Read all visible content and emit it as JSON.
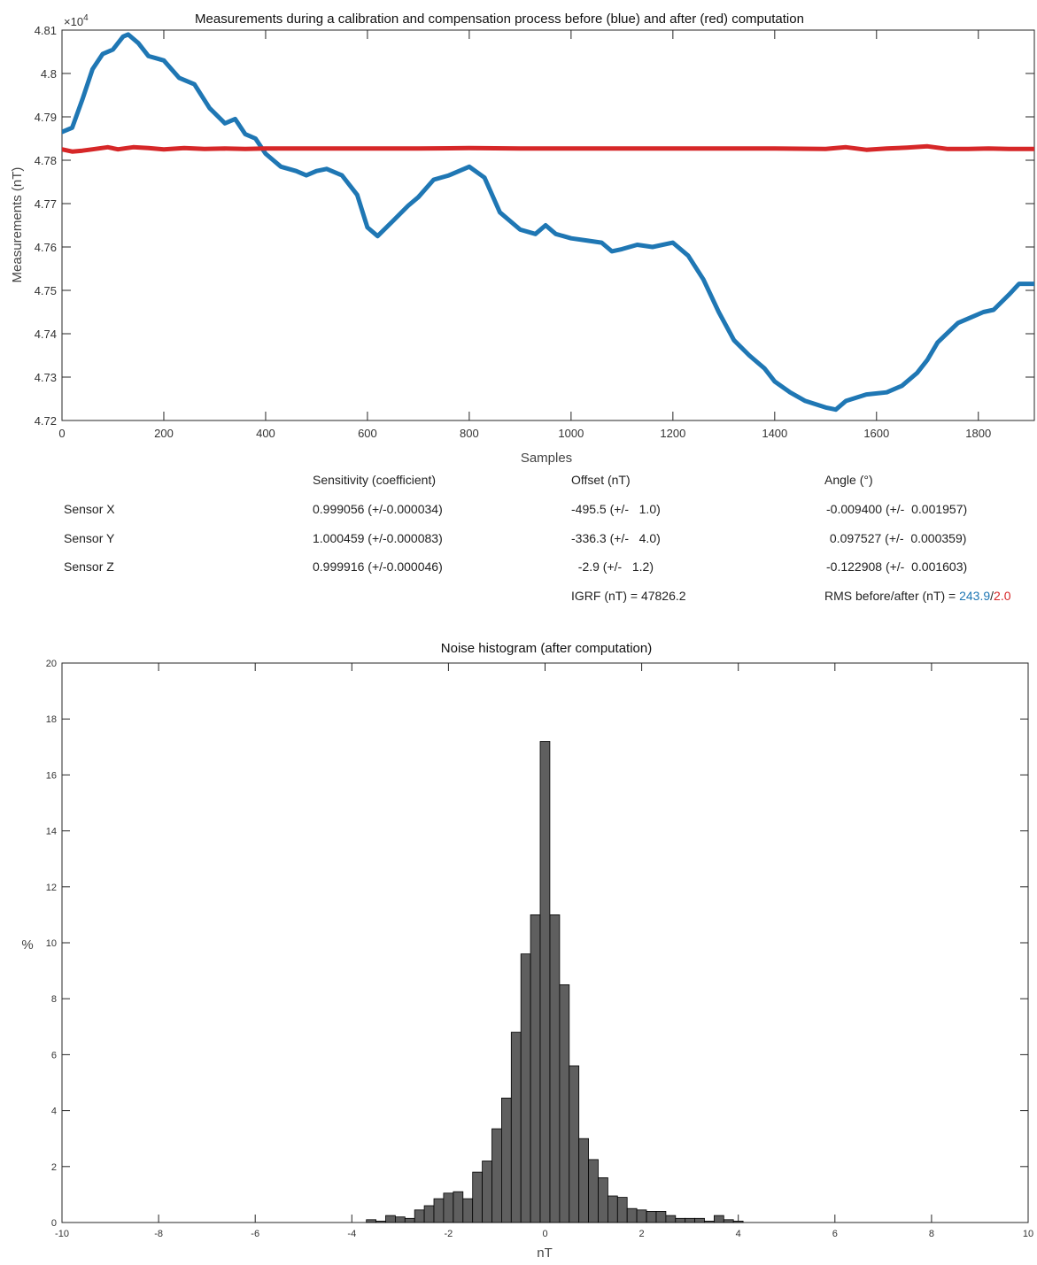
{
  "chart_data": [
    {
      "type": "line",
      "title": "Measurements during a calibration and compensation process before (blue) and after (red) computation",
      "xlabel": "Samples",
      "ylabel": "Measurements (nT)",
      "y_exponent_label": "×10",
      "y_exponent_power": "4",
      "xlim": [
        0,
        1910
      ],
      "ylim": [
        4.72,
        4.81
      ],
      "x_ticks": [
        "0",
        "200",
        "400",
        "600",
        "800",
        "1000",
        "1200",
        "1400",
        "1600",
        "1800"
      ],
      "y_ticks": [
        "4.72",
        "4.73",
        "4.74",
        "4.75",
        "4.76",
        "4.77",
        "4.78",
        "4.79",
        "4.8",
        "4.81"
      ],
      "colors": {
        "before": "#1f77b4",
        "after": "#d62728"
      },
      "series": [
        {
          "x": [
            0,
            20,
            40,
            60,
            80,
            100,
            120,
            130,
            150,
            170,
            185,
            200,
            230,
            260,
            290,
            320,
            340,
            360,
            380,
            400,
            430,
            460,
            480,
            500,
            520,
            550,
            580,
            600,
            620,
            650,
            680,
            700,
            730,
            760,
            800,
            830,
            860,
            900,
            930,
            950,
            970,
            1000,
            1030,
            1060,
            1080,
            1100,
            1130,
            1160,
            1200,
            1230,
            1260,
            1290,
            1320,
            1350,
            1380,
            1400,
            1430,
            1460,
            1500,
            1520,
            1540,
            1580,
            1620,
            1650,
            1680,
            1700,
            1720,
            1760,
            1790,
            1810,
            1830,
            1860,
            1880,
            1910
          ],
          "values": [
            4.7865,
            4.7875,
            4.794,
            4.801,
            4.8045,
            4.8055,
            4.8085,
            4.809,
            4.807,
            4.804,
            4.8035,
            4.803,
            4.799,
            4.7975,
            4.792,
            4.7885,
            4.7895,
            4.786,
            4.785,
            4.7815,
            4.7785,
            4.7775,
            4.7765,
            4.7775,
            4.778,
            4.7765,
            4.772,
            4.7645,
            4.7625,
            4.766,
            4.7695,
            4.7715,
            4.7755,
            4.7765,
            4.7785,
            4.776,
            4.768,
            4.764,
            4.763,
            4.765,
            4.763,
            4.762,
            4.7615,
            4.761,
            4.759,
            4.7595,
            4.7605,
            4.76,
            4.761,
            4.758,
            4.7525,
            4.745,
            4.7385,
            4.735,
            4.732,
            4.729,
            4.7265,
            4.7245,
            4.723,
            4.7225,
            4.7245,
            4.726,
            4.7265,
            4.728,
            4.731,
            4.734,
            4.738,
            4.7425,
            4.744,
            4.745,
            4.7455,
            4.749,
            4.7515,
            4.7515
          ]
        },
        {
          "x": [
            0,
            20,
            40,
            60,
            90,
            110,
            140,
            170,
            200,
            240,
            280,
            320,
            360,
            400,
            500,
            600,
            700,
            800,
            900,
            1000,
            1100,
            1200,
            1300,
            1400,
            1500,
            1540,
            1580,
            1620,
            1660,
            1700,
            1740,
            1780,
            1820,
            1860,
            1910
          ],
          "values": [
            4.7825,
            4.782,
            4.7822,
            4.7825,
            4.783,
            4.7825,
            4.783,
            4.7828,
            4.7825,
            4.7828,
            4.7826,
            4.7827,
            4.7826,
            4.7827,
            4.7827,
            4.7827,
            4.7827,
            4.7828,
            4.7827,
            4.7827,
            4.7827,
            4.7827,
            4.7827,
            4.7827,
            4.7826,
            4.783,
            4.7824,
            4.7827,
            4.7829,
            4.7832,
            4.7826,
            4.7826,
            4.7827,
            4.7826,
            4.7826
          ]
        }
      ]
    },
    {
      "type": "bar",
      "title": "Noise histogram (after computation)",
      "xlabel": "nT",
      "ylabel": "%",
      "xlim": [
        -10,
        10
      ],
      "ylim": [
        0,
        20
      ],
      "bin_width": 0.2,
      "x_ticks": [
        "-10",
        "-8",
        "-6",
        "-4",
        "-2",
        "0",
        "2",
        "4",
        "6",
        "8",
        "10"
      ],
      "y_ticks": [
        "0",
        "2",
        "4",
        "6",
        "8",
        "10",
        "12",
        "14",
        "16",
        "18",
        "20"
      ],
      "color": "#5f5f5f",
      "x": [
        -3.6,
        -3.4,
        -3.2,
        -3.0,
        -2.8,
        -2.6,
        -2.4,
        -2.2,
        -2.0,
        -1.8,
        -1.6,
        -1.4,
        -1.2,
        -1.0,
        -0.8,
        -0.6,
        -0.4,
        -0.2,
        0.0,
        0.2,
        0.4,
        0.6,
        0.8,
        1.0,
        1.2,
        1.4,
        1.6,
        1.8,
        2.0,
        2.2,
        2.4,
        2.6,
        2.8,
        3.0,
        3.2,
        3.4,
        3.6,
        3.8,
        4.0,
        4.2
      ],
      "values": [
        0.1,
        0.05,
        0.25,
        0.2,
        0.15,
        0.45,
        0.6,
        0.85,
        1.05,
        1.1,
        0.85,
        1.8,
        2.2,
        3.35,
        4.45,
        6.8,
        9.6,
        11.0,
        17.2,
        11.0,
        8.5,
        5.6,
        3.0,
        2.25,
        1.6,
        0.95,
        0.9,
        0.5,
        0.45,
        0.4,
        0.4,
        0.25,
        0.15,
        0.15,
        0.15,
        0.05,
        0.25,
        0.1,
        0.05,
        0.0
      ]
    }
  ],
  "table": {
    "headers": [
      "Sensitivity (coefficient)",
      "Offset (nT)",
      "Angle (°)"
    ],
    "rows": [
      {
        "label": "Sensor X",
        "sensitivity": "0.999056 (+/-0.000034)",
        "offset": "-495.5 (+/-   1.0)",
        "angle": "-0.009400 (+/-  0.001957)"
      },
      {
        "label": "Sensor Y",
        "sensitivity": "1.000459 (+/-0.000083)",
        "offset": "-336.3 (+/-   4.0)",
        "angle": " 0.097527 (+/-  0.000359)"
      },
      {
        "label": "Sensor Z",
        "sensitivity": "0.999916 (+/-0.000046)",
        "offset": "  -2.9 (+/-   1.2)",
        "angle": "-0.122908 (+/-  0.001603)"
      }
    ],
    "igrf_text": "IGRF (nT) = 47826.2",
    "rms_label": "RMS before/after (nT) = ",
    "rms_before": "243.9",
    "rms_sep": "/",
    "rms_after": "2.0"
  }
}
